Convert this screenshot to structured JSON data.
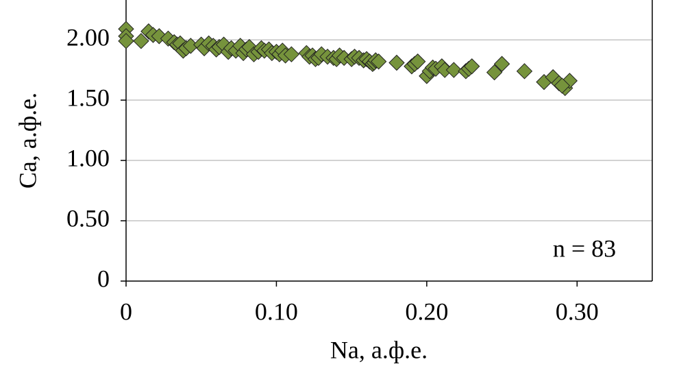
{
  "chart_data": {
    "type": "scatter",
    "xlabel": "Na, а.ф.е.",
    "ylabel": "Ca, а.ф.е.",
    "annotation": "n = 83",
    "color": "#76933c",
    "marker": "diamond",
    "grid": true,
    "xlim": [
      0,
      0.35
    ],
    "ylim": [
      0,
      2.33
    ],
    "xticks": [
      0,
      {
        "value": 0.1,
        "label": "0.10"
      },
      {
        "value": 0.2,
        "label": "0.20"
      },
      {
        "value": 0.3,
        "label": "0.30"
      }
    ],
    "yticks": [
      0,
      {
        "value": 0.5,
        "label": "0.50"
      },
      {
        "value": 1,
        "label": "1.00"
      },
      {
        "value": 1.5,
        "label": "1.50"
      },
      {
        "value": 2,
        "label": "2.00"
      }
    ],
    "x": [
      0.0,
      0.0,
      0.0,
      0.01,
      0.015,
      0.018,
      0.022,
      0.028,
      0.032,
      0.034,
      0.036,
      0.038,
      0.04,
      0.043,
      0.05,
      0.052,
      0.055,
      0.058,
      0.06,
      0.062,
      0.065,
      0.068,
      0.07,
      0.073,
      0.076,
      0.078,
      0.08,
      0.082,
      0.085,
      0.088,
      0.09,
      0.092,
      0.095,
      0.097,
      0.1,
      0.102,
      0.104,
      0.106,
      0.11,
      0.12,
      0.122,
      0.124,
      0.126,
      0.128,
      0.13,
      0.134,
      0.138,
      0.14,
      0.142,
      0.145,
      0.15,
      0.152,
      0.155,
      0.158,
      0.16,
      0.162,
      0.164,
      0.165,
      0.166,
      0.168,
      0.18,
      0.19,
      0.192,
      0.194,
      0.2,
      0.202,
      0.204,
      0.206,
      0.21,
      0.212,
      0.218,
      0.226,
      0.228,
      0.23,
      0.245,
      0.25,
      0.265,
      0.278,
      0.284,
      0.288,
      0.292,
      0.295,
      0.29
    ],
    "values": [
      2.09,
      2.03,
      1.99,
      1.99,
      2.07,
      2.04,
      2.03,
      2.01,
      1.98,
      1.96,
      1.97,
      1.91,
      1.93,
      1.95,
      1.96,
      1.93,
      1.97,
      1.95,
      1.92,
      1.94,
      1.96,
      1.9,
      1.93,
      1.91,
      1.95,
      1.89,
      1.92,
      1.94,
      1.88,
      1.9,
      1.93,
      1.91,
      1.92,
      1.89,
      1.9,
      1.88,
      1.91,
      1.87,
      1.88,
      1.89,
      1.86,
      1.87,
      1.84,
      1.85,
      1.88,
      1.86,
      1.85,
      1.84,
      1.87,
      1.85,
      1.84,
      1.86,
      1.85,
      1.83,
      1.84,
      1.82,
      1.8,
      1.81,
      1.83,
      1.82,
      1.81,
      1.78,
      1.8,
      1.82,
      1.7,
      1.74,
      1.77,
      1.76,
      1.78,
      1.75,
      1.75,
      1.74,
      1.76,
      1.78,
      1.73,
      1.8,
      1.74,
      1.65,
      1.69,
      1.64,
      1.6,
      1.66,
      1.62
    ]
  }
}
